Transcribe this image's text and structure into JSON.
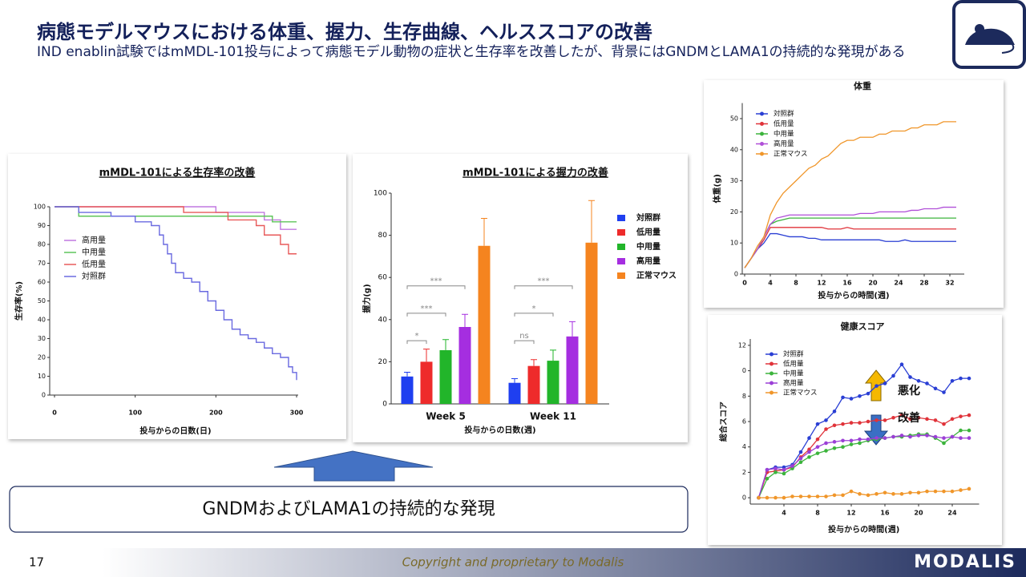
{
  "header": {
    "title": "病態モデルマウスにおける体重、握力、生存曲線、ヘルススコアの改善",
    "subtitle": "IND enablin試験ではmMDL-101投与によって病態モデル動物の症状と生存率を改善したが、背景にはGNDMとLAMA1の持続的な発現がある"
  },
  "callout": "GNDMおよびLAMA1の持続的な発現",
  "footer": {
    "page": "17",
    "copyright": "Copyright and proprietary to Modalis",
    "logo": "MODALIS"
  },
  "chart_data": [
    {
      "type": "step",
      "title": "mMDL-101による生存率の改善",
      "x_label": "投与からの日数(日)",
      "y_label": "生存率(%)",
      "xlim": [
        0,
        300
      ],
      "xticks": [
        0,
        100,
        200,
        300
      ],
      "ylim": [
        0,
        100
      ],
      "yticks": [
        0,
        10,
        20,
        30,
        40,
        50,
        60,
        70,
        80,
        90,
        100
      ],
      "series": [
        {
          "name": "高用量",
          "color": "#c178e0",
          "x": [
            0,
            200,
            260,
            280,
            300
          ],
          "values": [
            100,
            97,
            93,
            88,
            88
          ]
        },
        {
          "name": "中用量",
          "color": "#5ec45a",
          "x": [
            0,
            30,
            270,
            300
          ],
          "values": [
            100,
            95,
            92,
            92
          ]
        },
        {
          "name": "低用量",
          "color": "#e85a5a",
          "x": [
            0,
            160,
            215,
            250,
            260,
            280,
            290,
            300
          ],
          "values": [
            100,
            97,
            93,
            90,
            85,
            80,
            75,
            75
          ]
        },
        {
          "name": "対照群",
          "color": "#6a6ae0",
          "x": [
            0,
            30,
            70,
            100,
            120,
            130,
            135,
            140,
            145,
            150,
            160,
            170,
            180,
            190,
            200,
            210,
            220,
            230,
            240,
            250,
            260,
            270,
            280,
            290,
            295,
            300
          ],
          "values": [
            100,
            97,
            95,
            92,
            90,
            85,
            80,
            75,
            70,
            65,
            62,
            60,
            55,
            50,
            45,
            40,
            35,
            32,
            30,
            28,
            25,
            22,
            20,
            15,
            12,
            8
          ]
        }
      ]
    },
    {
      "type": "bar",
      "title": "mMDL-101による握力の改善",
      "x_label": "投与からの日数(週)",
      "y_label": "握力(g)",
      "categories": [
        "Week 5",
        "Week 11"
      ],
      "ylim": [
        0,
        100
      ],
      "yticks": [
        0,
        20,
        40,
        60,
        80,
        100
      ],
      "annotations": [
        "*",
        "***",
        "***",
        "ns",
        "*",
        "***"
      ],
      "series": [
        {
          "name": "対照群",
          "color": "#1f3ff0",
          "values": [
            13,
            10
          ],
          "errors": [
            2,
            2
          ]
        },
        {
          "name": "低用量",
          "color": "#ee2b2b",
          "values": [
            20,
            18
          ],
          "errors": [
            6,
            3
          ]
        },
        {
          "name": "中用量",
          "color": "#22b52a",
          "values": [
            25.5,
            20.5
          ],
          "errors": [
            5,
            5
          ]
        },
        {
          "name": "高用量",
          "color": "#a52ee0",
          "values": [
            36.5,
            32
          ],
          "errors": [
            6,
            7
          ]
        },
        {
          "name": "正常マウス",
          "color": "#f5841f",
          "values": [
            75,
            76.5
          ],
          "errors": [
            13,
            20
          ]
        }
      ]
    },
    {
      "type": "line",
      "title": "体重",
      "x_label": "投与からの時間(週)",
      "y_label": "体重(g)",
      "xlim": [
        0,
        34
      ],
      "xticks": [
        0,
        4,
        8,
        12,
        16,
        20,
        24,
        28,
        32
      ],
      "ylim": [
        0,
        55
      ],
      "yticks": [
        0,
        10,
        20,
        30,
        40,
        50
      ],
      "x": [
        0,
        1,
        2,
        3,
        4,
        5,
        6,
        7,
        8,
        9,
        10,
        11,
        12,
        13,
        14,
        15,
        16,
        17,
        18,
        19,
        20,
        21,
        22,
        23,
        24,
        25,
        26,
        27,
        28,
        29,
        30,
        31,
        32,
        33
      ],
      "series": [
        {
          "name": "対照群",
          "color": "#2a3fd4",
          "values": [
            2,
            5,
            8,
            10,
            13,
            13,
            12.5,
            12,
            12,
            12,
            11.5,
            11.5,
            11,
            11,
            11,
            11,
            11,
            11,
            11,
            11,
            11,
            11,
            10.5,
            10.5,
            10.5,
            11,
            10.5,
            10.5,
            10.5,
            10.5,
            10.5,
            10.5,
            10.5,
            10.5
          ]
        },
        {
          "name": "低用量",
          "color": "#e0333a",
          "values": [
            2,
            5,
            8,
            11,
            15,
            15,
            15,
            15,
            15,
            15,
            15,
            15,
            15,
            14.5,
            14.5,
            14.5,
            15,
            14.5,
            14.5,
            14.5,
            14.5,
            14.5,
            14.5,
            14.5,
            14.5,
            14.5,
            14.5,
            14.5,
            14.5,
            14.5,
            14.5,
            14.5,
            14.5,
            14.5
          ]
        },
        {
          "name": "中用量",
          "color": "#3cb43c",
          "values": [
            2,
            5,
            8,
            12,
            16,
            17,
            17.5,
            18,
            18,
            18,
            18,
            18,
            18,
            18,
            18,
            18,
            18,
            18,
            18,
            18,
            18,
            18,
            18,
            18,
            18,
            18,
            18,
            18,
            18,
            18,
            18,
            18,
            18,
            18
          ]
        },
        {
          "name": "高用量",
          "color": "#b04fd8",
          "values": [
            2,
            5,
            8,
            12,
            16,
            18,
            18.5,
            19,
            19,
            19,
            19,
            19,
            19,
            19,
            19,
            19,
            19,
            19,
            19.5,
            19.5,
            19.5,
            20,
            20,
            20,
            20,
            20,
            20.5,
            20.5,
            21,
            21,
            21,
            21.5,
            21.5,
            21.5
          ]
        },
        {
          "name": "正常マウス",
          "color": "#f0962a",
          "values": [
            2,
            5,
            9,
            12,
            19,
            23,
            26,
            28,
            30,
            32,
            34,
            35,
            37,
            38,
            40,
            42,
            43,
            43,
            44,
            44,
            44,
            45,
            45,
            46,
            46,
            46,
            47,
            47,
            48,
            48,
            48,
            49,
            49,
            49
          ]
        }
      ]
    },
    {
      "type": "line",
      "title": "健康スコア",
      "x_label": "投与からの時間(週)",
      "y_label": "総合スコア",
      "annotations": [
        "悪化",
        "改善"
      ],
      "xlim": [
        0,
        27
      ],
      "xticks": [
        4,
        8,
        12,
        16,
        20,
        24
      ],
      "ylim": [
        -0.5,
        12.5
      ],
      "yticks": [
        0,
        2,
        4,
        6,
        8,
        {
          "value": 10,
          "label": "0"
        },
        12
      ],
      "markers": true,
      "x": [
        1,
        2,
        3,
        4,
        5,
        6,
        7,
        8,
        9,
        10,
        11,
        12,
        13,
        14,
        15,
        16,
        17,
        18,
        19,
        20,
        21,
        22,
        23,
        24,
        25,
        26
      ],
      "series": [
        {
          "name": "対照群",
          "color": "#2a3fd4",
          "values": [
            0,
            2.2,
            2.4,
            2.4,
            2.6,
            3.6,
            4.7,
            5.8,
            6.1,
            6.8,
            7.9,
            7.8,
            8,
            8.2,
            8.8,
            9,
            9.6,
            10.5,
            9.5,
            9.2,
            9,
            8.6,
            8.3,
            9.2,
            9.4,
            9.4
          ]
        },
        {
          "name": "低用量",
          "color": "#e0333a",
          "values": [
            0,
            2,
            2.1,
            2.2,
            2.4,
            3.2,
            3.8,
            4.6,
            5.4,
            5.7,
            5.8,
            5.9,
            5.9,
            6,
            6.1,
            6.1,
            6.3,
            6.5,
            6.2,
            6.3,
            6.2,
            6.1,
            5.8,
            6.2,
            6.4,
            6.5
          ]
        },
        {
          "name": "中用量",
          "color": "#3cb43c",
          "values": [
            0,
            1.5,
            2,
            1.9,
            2.3,
            2.8,
            3.2,
            3.5,
            3.7,
            3.9,
            4,
            4.2,
            4.3,
            4.5,
            4.6,
            4.7,
            4.8,
            4.8,
            4.9,
            5,
            5,
            4.7,
            4.3,
            4.8,
            5.3,
            5.3
          ]
        },
        {
          "name": "高用量",
          "color": "#9b3fd6",
          "values": [
            0,
            2.2,
            2.3,
            2.2,
            2.5,
            3.1,
            3.6,
            4,
            4.3,
            4.4,
            4.5,
            4.5,
            4.6,
            4.6,
            4.7,
            4.7,
            4.8,
            4.9,
            4.8,
            4.9,
            4.9,
            4.8,
            4.7,
            4.8,
            4.7,
            4.7
          ]
        },
        {
          "name": "正常マウス",
          "color": "#f0962a",
          "values": [
            0,
            0,
            0,
            0,
            0.1,
            0.1,
            0.1,
            0.1,
            0.1,
            0.2,
            0.2,
            0.5,
            0.3,
            0.2,
            0.3,
            0.4,
            0.3,
            0.3,
            0.4,
            0.4,
            0.5,
            0.5,
            0.5,
            0.5,
            0.6,
            0.7
          ]
        }
      ]
    }
  ]
}
